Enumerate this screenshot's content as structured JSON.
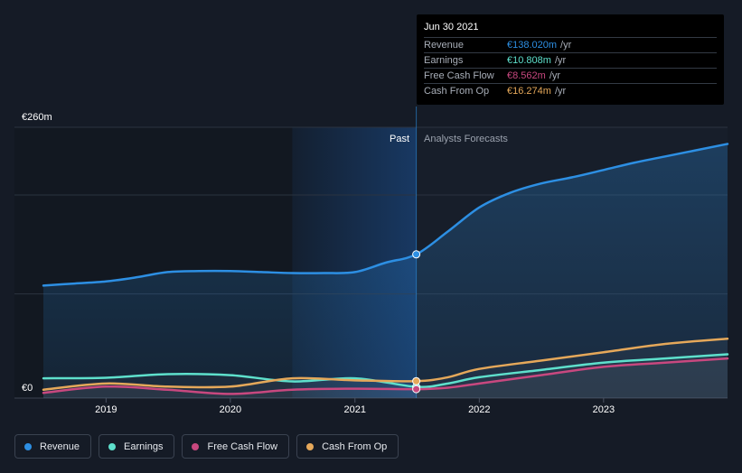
{
  "chart_data": {
    "type": "line",
    "y_axis": {
      "top_label": "€260m",
      "bottom_label": "€0",
      "ylim": [
        0,
        260
      ]
    },
    "x_ticks": [
      "2019",
      "2020",
      "2021",
      "2022",
      "2023"
    ],
    "regions": {
      "past_label": "Past",
      "forecast_label": "Analysts Forecasts"
    },
    "series": [
      {
        "name": "Revenue",
        "key": "revenue",
        "color": "#2d8fe3",
        "points": [
          [
            "2018-07-01",
            108
          ],
          [
            "2018-10-01",
            110
          ],
          [
            "2019-01-01",
            112
          ],
          [
            "2019-04-01",
            116
          ],
          [
            "2019-07-01",
            121
          ],
          [
            "2019-10-01",
            122
          ],
          [
            "2020-01-01",
            122
          ],
          [
            "2020-04-01",
            121
          ],
          [
            "2020-07-01",
            120
          ],
          [
            "2020-10-01",
            120
          ],
          [
            "2021-01-01",
            121
          ],
          [
            "2021-04-01",
            130
          ],
          [
            "2021-06-30",
            138
          ],
          [
            "2021-10-01",
            160
          ],
          [
            "2022-01-01",
            183
          ],
          [
            "2022-04-01",
            197
          ],
          [
            "2022-07-01",
            206
          ],
          [
            "2022-10-01",
            212
          ],
          [
            "2023-01-01",
            219
          ],
          [
            "2023-04-01",
            226
          ],
          [
            "2023-07-01",
            232
          ],
          [
            "2023-12-31",
            244
          ]
        ]
      },
      {
        "name": "Earnings",
        "key": "earnings",
        "color": "#5ee0cc",
        "points": [
          [
            "2018-07-01",
            19
          ],
          [
            "2019-01-01",
            19.5
          ],
          [
            "2019-07-01",
            23
          ],
          [
            "2020-01-01",
            22
          ],
          [
            "2020-07-01",
            16
          ],
          [
            "2021-01-01",
            19
          ],
          [
            "2021-06-30",
            10.8
          ],
          [
            "2021-10-01",
            14
          ],
          [
            "2022-01-01",
            20
          ],
          [
            "2022-07-01",
            27
          ],
          [
            "2023-01-01",
            34
          ],
          [
            "2023-07-01",
            38
          ],
          [
            "2023-12-31",
            42
          ]
        ]
      },
      {
        "name": "Free Cash Flow",
        "key": "fcf",
        "color": "#c8487f",
        "points": [
          [
            "2018-07-01",
            5
          ],
          [
            "2019-01-01",
            11
          ],
          [
            "2019-07-01",
            8
          ],
          [
            "2020-01-01",
            4
          ],
          [
            "2020-07-01",
            8
          ],
          [
            "2021-01-01",
            9
          ],
          [
            "2021-06-30",
            8.562
          ],
          [
            "2021-10-01",
            10
          ],
          [
            "2022-01-01",
            14
          ],
          [
            "2022-07-01",
            22
          ],
          [
            "2023-01-01",
            30
          ],
          [
            "2023-07-01",
            34
          ],
          [
            "2023-12-31",
            38
          ]
        ]
      },
      {
        "name": "Cash From Op",
        "key": "cfo",
        "color": "#e5a85a",
        "points": [
          [
            "2018-07-01",
            8
          ],
          [
            "2019-01-01",
            14
          ],
          [
            "2019-07-01",
            11
          ],
          [
            "2020-01-01",
            11
          ],
          [
            "2020-07-01",
            19
          ],
          [
            "2021-01-01",
            17
          ],
          [
            "2021-06-30",
            16.274
          ],
          [
            "2021-10-01",
            20
          ],
          [
            "2022-01-01",
            28
          ],
          [
            "2022-07-01",
            36
          ],
          [
            "2023-01-01",
            44
          ],
          [
            "2023-07-01",
            52
          ],
          [
            "2023-12-31",
            57
          ]
        ]
      }
    ]
  },
  "tooltip": {
    "date": "Jun 30 2021",
    "rows": [
      {
        "name": "Revenue",
        "value": "€138.020m",
        "unit": " /yr",
        "color": "#2d8fe3"
      },
      {
        "name": "Earnings",
        "value": "€10.808m",
        "unit": " /yr",
        "color": "#5ee0cc"
      },
      {
        "name": "Free Cash Flow",
        "value": "€8.562m",
        "unit": " /yr",
        "color": "#c8487f"
      },
      {
        "name": "Cash From Op",
        "value": "€16.274m",
        "unit": " /yr",
        "color": "#e5a85a"
      }
    ]
  },
  "legend": [
    {
      "label": "Revenue",
      "color": "#2d8fe3"
    },
    {
      "label": "Earnings",
      "color": "#5ee0cc"
    },
    {
      "label": "Free Cash Flow",
      "color": "#c8487f"
    },
    {
      "label": "Cash From Op",
      "color": "#e5a85a"
    }
  ]
}
